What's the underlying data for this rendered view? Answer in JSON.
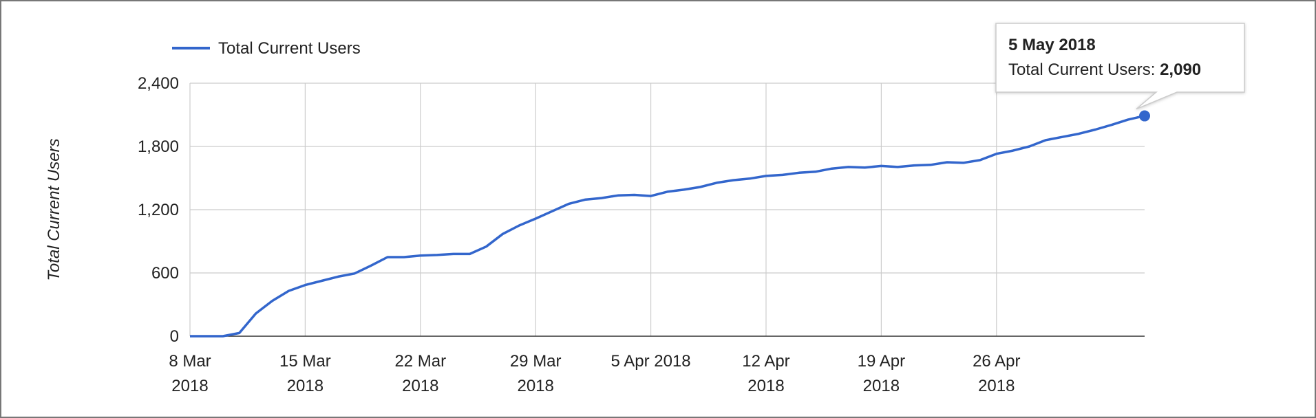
{
  "chart_data": {
    "type": "line",
    "y_label": "Total Current Users",
    "x": [
      "2018-03-08",
      "2018-03-09",
      "2018-03-10",
      "2018-03-11",
      "2018-03-12",
      "2018-03-13",
      "2018-03-14",
      "2018-03-15",
      "2018-03-16",
      "2018-03-17",
      "2018-03-18",
      "2018-03-19",
      "2018-03-20",
      "2018-03-21",
      "2018-03-22",
      "2018-03-23",
      "2018-03-24",
      "2018-03-25",
      "2018-03-26",
      "2018-03-27",
      "2018-03-28",
      "2018-03-29",
      "2018-03-30",
      "2018-03-31",
      "2018-04-01",
      "2018-04-02",
      "2018-04-03",
      "2018-04-04",
      "2018-04-05",
      "2018-04-06",
      "2018-04-07",
      "2018-04-08",
      "2018-04-09",
      "2018-04-10",
      "2018-04-11",
      "2018-04-12",
      "2018-04-13",
      "2018-04-14",
      "2018-04-15",
      "2018-04-16",
      "2018-04-17",
      "2018-04-18",
      "2018-04-19",
      "2018-04-20",
      "2018-04-21",
      "2018-04-22",
      "2018-04-23",
      "2018-04-24",
      "2018-04-25",
      "2018-04-26",
      "2018-04-27",
      "2018-04-28",
      "2018-04-29",
      "2018-04-30",
      "2018-05-01",
      "2018-05-02",
      "2018-05-03",
      "2018-05-04",
      "2018-05-05"
    ],
    "series": [
      {
        "name": "Total Current Users",
        "color": "#3366cc",
        "values": [
          0,
          0,
          0,
          30,
          215,
          335,
          430,
          485,
          525,
          565,
          595,
          670,
          750,
          750,
          765,
          770,
          780,
          780,
          850,
          970,
          1050,
          1115,
          1185,
          1255,
          1295,
          1310,
          1335,
          1340,
          1330,
          1370,
          1390,
          1415,
          1455,
          1480,
          1495,
          1520,
          1530,
          1550,
          1560,
          1590,
          1605,
          1600,
          1615,
          1605,
          1620,
          1625,
          1650,
          1645,
          1670,
          1730,
          1760,
          1800,
          1860,
          1890,
          1920,
          1960,
          2005,
          2055,
          2090
        ]
      }
    ],
    "xlim": [
      "2018-03-08",
      "2018-05-05"
    ],
    "xticks": [
      {
        "value": "2018-03-08",
        "label": "8 Mar\n2018"
      },
      {
        "value": "2018-03-15",
        "label": "15 Mar\n2018"
      },
      {
        "value": "2018-03-22",
        "label": "22 Mar\n2018"
      },
      {
        "value": "2018-03-29",
        "label": "29 Mar\n2018"
      },
      {
        "value": "2018-04-05",
        "label": "5 Apr 2018"
      },
      {
        "value": "2018-04-12",
        "label": "12 Apr\n2018"
      },
      {
        "value": "2018-04-19",
        "label": "19 Apr\n2018"
      },
      {
        "value": "2018-04-26",
        "label": "26 Apr\n2018"
      }
    ],
    "ylim": [
      0,
      2400
    ],
    "yticks": [
      0,
      {
        "value": 600,
        "label": "600"
      },
      {
        "value": 1200,
        "label": "1,200"
      },
      {
        "value": 1800,
        "label": "1,800"
      },
      {
        "value": 2400,
        "label": "2,400"
      }
    ],
    "grid": true,
    "legend": "top-left",
    "tooltip": {
      "title": "5 May 2018",
      "label": "Total Current Users:",
      "value_label": "2,090"
    }
  }
}
